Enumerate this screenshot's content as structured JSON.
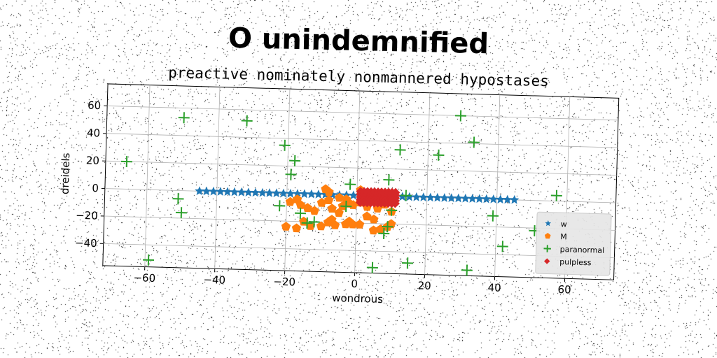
{
  "title": "O unindemnified",
  "subtitle": "preactive nominately nonmannered hypostases",
  "chart_data": {
    "type": "scatter",
    "title": "O unindemnified",
    "subtitle": "preactive nominately nonmannered hypostases",
    "xlabel": "wondrous",
    "ylabel": "dreidels",
    "xlim": [
      -72,
      74
    ],
    "ylim": [
      -56,
      76
    ],
    "xticks": [
      -60,
      -40,
      -20,
      0,
      20,
      40,
      60
    ],
    "yticks": [
      -40,
      -20,
      0,
      20,
      40,
      60
    ],
    "grid": true,
    "legend": "bottom-right",
    "series": [
      {
        "name": "w",
        "marker": "star",
        "color": "#1f77b4",
        "points": [
          [
            -45,
            0
          ],
          [
            -43,
            0
          ],
          [
            -41,
            0
          ],
          [
            -39,
            0
          ],
          [
            -37,
            0
          ],
          [
            -35,
            0
          ],
          [
            -33,
            0
          ],
          [
            -31,
            0
          ],
          [
            -29,
            0
          ],
          [
            -27,
            0
          ],
          [
            -25,
            0
          ],
          [
            -23,
            0
          ],
          [
            -21,
            0
          ],
          [
            -19,
            0
          ],
          [
            -17,
            0
          ],
          [
            -15,
            0
          ],
          [
            -13,
            0
          ],
          [
            -11,
            0
          ],
          [
            -9,
            0
          ],
          [
            -7,
            0
          ],
          [
            -5,
            0
          ],
          [
            -3,
            0
          ],
          [
            -1,
            0
          ],
          [
            1,
            0
          ],
          [
            3,
            0
          ],
          [
            5,
            0
          ],
          [
            7,
            0
          ],
          [
            9,
            0
          ],
          [
            11,
            0
          ],
          [
            13,
            0
          ],
          [
            15,
            0
          ],
          [
            17,
            0
          ],
          [
            19,
            0
          ],
          [
            21,
            0
          ],
          [
            23,
            0
          ],
          [
            25,
            0
          ],
          [
            27,
            0
          ],
          [
            29,
            0
          ],
          [
            31,
            0
          ],
          [
            33,
            0
          ],
          [
            35,
            0
          ],
          [
            37,
            0
          ],
          [
            39,
            0
          ],
          [
            41,
            0
          ],
          [
            43,
            0
          ],
          [
            45,
            0
          ]
        ]
      },
      {
        "name": "M",
        "marker": "pentagon",
        "color": "#ff7f0e",
        "points": [
          [
            -20,
            -24
          ],
          [
            -17,
            -25
          ],
          [
            -15,
            -20
          ],
          [
            -13,
            -23
          ],
          [
            -10,
            -23
          ],
          [
            -8,
            -20
          ],
          [
            -7,
            -18
          ],
          [
            -6,
            -22
          ],
          [
            -3,
            -21
          ],
          [
            -2,
            -19
          ],
          [
            -1,
            -21
          ],
          [
            1,
            -21
          ],
          [
            5,
            -25
          ],
          [
            7,
            -24
          ],
          [
            9,
            -22
          ],
          [
            10,
            -20
          ],
          [
            -19,
            -6
          ],
          [
            -17,
            -4
          ],
          [
            -16,
            -8
          ],
          [
            -14,
            -10
          ],
          [
            -12,
            -12
          ],
          [
            -10,
            -6
          ],
          [
            -8,
            -4
          ],
          [
            -7,
            -10
          ],
          [
            -5,
            -13
          ],
          [
            -4,
            -8
          ],
          [
            -2,
            -6
          ],
          [
            -1,
            -7
          ],
          [
            1,
            -5
          ],
          [
            2,
            -3
          ],
          [
            -9,
            4
          ],
          [
            -8,
            2
          ],
          [
            -5,
            -2
          ],
          [
            -3,
            -3
          ],
          [
            1,
            4
          ],
          [
            3,
            -8
          ],
          [
            6,
            -9
          ],
          [
            8,
            -6
          ],
          [
            10,
            -11
          ],
          [
            3,
            -15
          ],
          [
            5,
            -17
          ]
        ]
      },
      {
        "name": "paranormal",
        "marker": "plus",
        "color": "#2ca02c",
        "points": [
          [
            -66,
            20
          ],
          [
            -50,
            53
          ],
          [
            -32,
            52
          ],
          [
            -21,
            35
          ],
          [
            -19,
            14
          ],
          [
            -18,
            24
          ],
          [
            -51,
            -6
          ],
          [
            -50,
            -16
          ],
          [
            -22,
            -9
          ],
          [
            -16,
            -14
          ],
          [
            -59,
            -51
          ],
          [
            -2,
            8
          ],
          [
            -3,
            -8
          ],
          [
            -14,
            -21
          ],
          [
            -12,
            -20
          ],
          [
            8,
            -27
          ],
          [
            9,
            -22
          ],
          [
            9,
            12
          ],
          [
            12,
            34
          ],
          [
            14,
            1
          ],
          [
            23,
            31
          ],
          [
            29,
            60
          ],
          [
            33,
            41
          ],
          [
            39,
            -12
          ],
          [
            42,
            -34
          ],
          [
            51,
            -22
          ],
          [
            57,
            4
          ],
          [
            5,
            -52
          ],
          [
            15,
            -48
          ],
          [
            32,
            -52
          ],
          [
            10,
            -10
          ]
        ]
      },
      {
        "name": "pulpless",
        "marker": "diamond",
        "color": "#d62728",
        "points": [
          [
            1,
            -1
          ],
          [
            1,
            1
          ],
          [
            1,
            3
          ],
          [
            1,
            -3
          ],
          [
            1,
            -5
          ],
          [
            2,
            -1
          ],
          [
            2,
            1
          ],
          [
            2,
            3
          ],
          [
            2,
            -3
          ],
          [
            2,
            -5
          ],
          [
            3,
            -1
          ],
          [
            3,
            1
          ],
          [
            3,
            3
          ],
          [
            3,
            -3
          ],
          [
            3,
            -5
          ],
          [
            4,
            -1
          ],
          [
            4,
            1
          ],
          [
            4,
            3
          ],
          [
            4,
            -3
          ],
          [
            4,
            -5
          ],
          [
            5,
            -1
          ],
          [
            5,
            1
          ],
          [
            5,
            3
          ],
          [
            5,
            -3
          ],
          [
            5,
            -5
          ],
          [
            6,
            -1
          ],
          [
            6,
            1
          ],
          [
            6,
            3
          ],
          [
            6,
            -3
          ],
          [
            6,
            -5
          ],
          [
            7,
            -1
          ],
          [
            7,
            1
          ],
          [
            7,
            3
          ],
          [
            7,
            -3
          ],
          [
            7,
            -5
          ],
          [
            8,
            -1
          ],
          [
            8,
            1
          ],
          [
            8,
            3
          ],
          [
            8,
            -3
          ],
          [
            8,
            -5
          ],
          [
            9,
            -1
          ],
          [
            9,
            1
          ],
          [
            9,
            3
          ],
          [
            9,
            -3
          ],
          [
            9,
            -5
          ],
          [
            10,
            -1
          ],
          [
            10,
            1
          ],
          [
            10,
            3
          ],
          [
            10,
            -3
          ],
          [
            10,
            -5
          ],
          [
            11,
            -1
          ],
          [
            11,
            1
          ],
          [
            11,
            3
          ],
          [
            11,
            -3
          ],
          [
            11,
            -5
          ]
        ]
      }
    ]
  }
}
